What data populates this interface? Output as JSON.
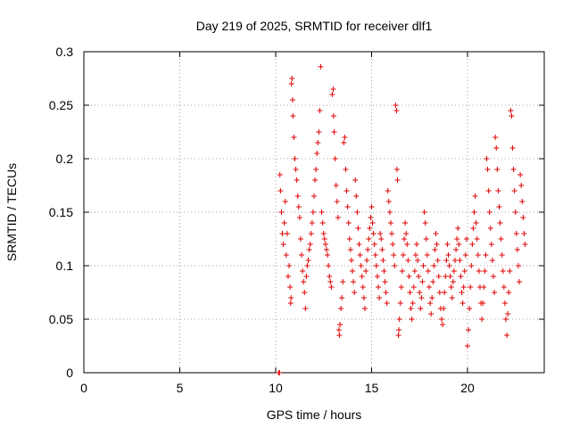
{
  "chart_data": {
    "type": "scatter",
    "title": "Day 219 of 2025, SRMTID for receiver dlf1",
    "xlabel": "GPS time / hours",
    "ylabel": "SRMTID / TECUs",
    "xlim": [
      0,
      24
    ],
    "ylim": [
      0,
      0.3
    ],
    "x_ticks": [
      0,
      5,
      10,
      15,
      20
    ],
    "y_ticks": [
      0,
      0.05,
      0.1,
      0.15,
      0.2,
      0.25,
      0.3
    ],
    "x_tick_labels": [
      "0",
      "5",
      "10",
      "15",
      "20"
    ],
    "y_tick_labels": [
      "0",
      "0.05",
      "0.1",
      "0.15",
      "0.2",
      "0.25",
      "0.3"
    ],
    "grid": true,
    "grid_style": "dotted",
    "marker": "+",
    "series": [
      {
        "color": "#e00000",
        "points": [
          [
            10.15,
            0.0
          ],
          [
            10.2,
            0.0
          ],
          [
            10.22,
            0.185
          ],
          [
            10.25,
            0.17
          ],
          [
            10.3,
            0.15
          ],
          [
            10.35,
            0.13
          ],
          [
            10.4,
            0.12
          ],
          [
            10.45,
            0.14
          ],
          [
            10.5,
            0.16
          ],
          [
            10.55,
            0.11
          ],
          [
            10.6,
            0.13
          ],
          [
            10.65,
            0.09
          ],
          [
            10.7,
            0.1
          ],
          [
            10.75,
            0.08
          ],
          [
            10.78,
            0.065
          ],
          [
            10.8,
            0.07
          ],
          [
            10.82,
            0.27
          ],
          [
            10.85,
            0.275
          ],
          [
            10.88,
            0.255
          ],
          [
            10.9,
            0.24
          ],
          [
            10.95,
            0.22
          ],
          [
            11.0,
            0.2
          ],
          [
            11.05,
            0.19
          ],
          [
            11.1,
            0.18
          ],
          [
            11.15,
            0.165
          ],
          [
            11.2,
            0.155
          ],
          [
            11.25,
            0.145
          ],
          [
            11.3,
            0.125
          ],
          [
            11.35,
            0.11
          ],
          [
            11.4,
            0.095
          ],
          [
            11.45,
            0.085
          ],
          [
            11.5,
            0.075
          ],
          [
            11.55,
            0.06
          ],
          [
            11.6,
            0.09
          ],
          [
            11.65,
            0.1
          ],
          [
            11.7,
            0.105
          ],
          [
            11.75,
            0.115
          ],
          [
            11.8,
            0.12
          ],
          [
            11.85,
            0.13
          ],
          [
            11.9,
            0.14
          ],
          [
            11.95,
            0.15
          ],
          [
            12.0,
            0.165
          ],
          [
            12.05,
            0.18
          ],
          [
            12.1,
            0.19
          ],
          [
            12.15,
            0.205
          ],
          [
            12.2,
            0.215
          ],
          [
            12.25,
            0.225
          ],
          [
            12.3,
            0.245
          ],
          [
            12.35,
            0.286
          ],
          [
            12.4,
            0.15
          ],
          [
            12.45,
            0.14
          ],
          [
            12.5,
            0.13
          ],
          [
            12.55,
            0.125
          ],
          [
            12.6,
            0.12
          ],
          [
            12.65,
            0.115
          ],
          [
            12.7,
            0.11
          ],
          [
            12.75,
            0.1
          ],
          [
            12.8,
            0.09
          ],
          [
            12.85,
            0.085
          ],
          [
            12.9,
            0.08
          ],
          [
            12.95,
            0.26
          ],
          [
            13.0,
            0.265
          ],
          [
            13.02,
            0.24
          ],
          [
            13.05,
            0.225
          ],
          [
            13.1,
            0.2
          ],
          [
            13.15,
            0.175
          ],
          [
            13.2,
            0.16
          ],
          [
            13.25,
            0.145
          ],
          [
            13.3,
            0.04
          ],
          [
            13.32,
            0.035
          ],
          [
            13.35,
            0.045
          ],
          [
            13.4,
            0.06
          ],
          [
            13.45,
            0.07
          ],
          [
            13.5,
            0.085
          ],
          [
            13.55,
            0.215
          ],
          [
            13.6,
            0.22
          ],
          [
            13.65,
            0.19
          ],
          [
            13.7,
            0.17
          ],
          [
            13.75,
            0.155
          ],
          [
            13.8,
            0.14
          ],
          [
            13.85,
            0.125
          ],
          [
            13.9,
            0.115
          ],
          [
            13.95,
            0.105
          ],
          [
            14.0,
            0.095
          ],
          [
            14.05,
            0.085
          ],
          [
            14.1,
            0.075
          ],
          [
            14.15,
            0.18
          ],
          [
            14.2,
            0.165
          ],
          [
            14.25,
            0.15
          ],
          [
            14.3,
            0.135
          ],
          [
            14.35,
            0.12
          ],
          [
            14.4,
            0.11
          ],
          [
            14.45,
            0.1
          ],
          [
            14.5,
            0.09
          ],
          [
            14.55,
            0.08
          ],
          [
            14.6,
            0.07
          ],
          [
            14.65,
            0.06
          ],
          [
            14.7,
            0.095
          ],
          [
            14.75,
            0.105
          ],
          [
            14.8,
            0.115
          ],
          [
            14.85,
            0.125
          ],
          [
            14.9,
            0.135
          ],
          [
            14.95,
            0.145
          ],
          [
            15.0,
            0.155
          ],
          [
            15.05,
            0.14
          ],
          [
            15.1,
            0.13
          ],
          [
            15.15,
            0.12
          ],
          [
            15.2,
            0.11
          ],
          [
            15.25,
            0.1
          ],
          [
            15.3,
            0.09
          ],
          [
            15.35,
            0.08
          ],
          [
            15.4,
            0.07
          ],
          [
            15.45,
            0.13
          ],
          [
            15.5,
            0.125
          ],
          [
            15.55,
            0.115
          ],
          [
            15.6,
            0.105
          ],
          [
            15.65,
            0.095
          ],
          [
            15.7,
            0.085
          ],
          [
            15.75,
            0.075
          ],
          [
            15.8,
            0.065
          ],
          [
            15.85,
            0.17
          ],
          [
            15.9,
            0.16
          ],
          [
            15.95,
            0.15
          ],
          [
            16.0,
            0.14
          ],
          [
            16.05,
            0.13
          ],
          [
            16.1,
            0.12
          ],
          [
            16.15,
            0.11
          ],
          [
            16.2,
            0.1
          ],
          [
            16.25,
            0.25
          ],
          [
            16.3,
            0.245
          ],
          [
            16.32,
            0.19
          ],
          [
            16.35,
            0.18
          ],
          [
            16.4,
            0.035
          ],
          [
            16.42,
            0.04
          ],
          [
            16.45,
            0.05
          ],
          [
            16.5,
            0.065
          ],
          [
            16.55,
            0.08
          ],
          [
            16.6,
            0.095
          ],
          [
            16.65,
            0.11
          ],
          [
            16.7,
            0.125
          ],
          [
            16.75,
            0.14
          ],
          [
            16.8,
            0.13
          ],
          [
            16.85,
            0.12
          ],
          [
            16.9,
            0.105
          ],
          [
            16.95,
            0.09
          ],
          [
            17.0,
            0.075
          ],
          [
            17.05,
            0.06
          ],
          [
            17.1,
            0.05
          ],
          [
            17.15,
            0.065
          ],
          [
            17.2,
            0.08
          ],
          [
            17.25,
            0.095
          ],
          [
            17.3,
            0.11
          ],
          [
            17.35,
            0.12
          ],
          [
            17.4,
            0.105
          ],
          [
            17.45,
            0.09
          ],
          [
            17.5,
            0.075
          ],
          [
            17.55,
            0.06
          ],
          [
            17.6,
            0.07
          ],
          [
            17.65,
            0.085
          ],
          [
            17.7,
            0.1
          ],
          [
            17.75,
            0.15
          ],
          [
            17.8,
            0.14
          ],
          [
            17.85,
            0.125
          ],
          [
            17.9,
            0.11
          ],
          [
            17.95,
            0.095
          ],
          [
            18.0,
            0.08
          ],
          [
            18.05,
            0.065
          ],
          [
            18.1,
            0.055
          ],
          [
            18.15,
            0.07
          ],
          [
            18.2,
            0.085
          ],
          [
            18.25,
            0.1
          ],
          [
            18.3,
            0.115
          ],
          [
            18.35,
            0.13
          ],
          [
            18.4,
            0.12
          ],
          [
            18.45,
            0.105
          ],
          [
            18.5,
            0.09
          ],
          [
            18.55,
            0.075
          ],
          [
            18.6,
            0.06
          ],
          [
            18.65,
            0.05
          ],
          [
            18.7,
            0.045
          ],
          [
            18.75,
            0.06
          ],
          [
            18.8,
            0.075
          ],
          [
            18.85,
            0.09
          ],
          [
            18.9,
            0.105
          ],
          [
            18.95,
            0.12
          ],
          [
            19.0,
            0.11
          ],
          [
            19.05,
            0.1
          ],
          [
            19.1,
            0.09
          ],
          [
            19.15,
            0.08
          ],
          [
            19.2,
            0.07
          ],
          [
            19.25,
            0.085
          ],
          [
            19.3,
            0.095
          ],
          [
            19.35,
            0.105
          ],
          [
            19.4,
            0.115
          ],
          [
            19.45,
            0.125
          ],
          [
            19.5,
            0.135
          ],
          [
            19.55,
            0.12
          ],
          [
            19.6,
            0.105
          ],
          [
            19.65,
            0.09
          ],
          [
            19.7,
            0.075
          ],
          [
            19.75,
            0.065
          ],
          [
            19.8,
            0.08
          ],
          [
            19.85,
            0.095
          ],
          [
            19.9,
            0.11
          ],
          [
            19.95,
            0.125
          ],
          [
            20.0,
            0.025
          ],
          [
            20.05,
            0.04
          ],
          [
            20.1,
            0.06
          ],
          [
            20.15,
            0.08
          ],
          [
            20.2,
            0.1
          ],
          [
            20.25,
            0.12
          ],
          [
            20.3,
            0.135
          ],
          [
            20.35,
            0.15
          ],
          [
            20.4,
            0.165
          ],
          [
            20.45,
            0.14
          ],
          [
            20.5,
            0.125
          ],
          [
            20.55,
            0.11
          ],
          [
            20.6,
            0.095
          ],
          [
            20.65,
            0.08
          ],
          [
            20.7,
            0.065
          ],
          [
            20.75,
            0.05
          ],
          [
            20.8,
            0.065
          ],
          [
            20.85,
            0.08
          ],
          [
            20.9,
            0.095
          ],
          [
            20.95,
            0.11
          ],
          [
            21.0,
            0.2
          ],
          [
            21.05,
            0.19
          ],
          [
            21.1,
            0.17
          ],
          [
            21.15,
            0.15
          ],
          [
            21.2,
            0.135
          ],
          [
            21.25,
            0.12
          ],
          [
            21.3,
            0.105
          ],
          [
            21.35,
            0.09
          ],
          [
            21.4,
            0.075
          ],
          [
            21.45,
            0.22
          ],
          [
            21.5,
            0.21
          ],
          [
            21.55,
            0.19
          ],
          [
            21.6,
            0.17
          ],
          [
            21.65,
            0.155
          ],
          [
            21.7,
            0.14
          ],
          [
            21.75,
            0.125
          ],
          [
            21.8,
            0.11
          ],
          [
            21.85,
            0.095
          ],
          [
            21.9,
            0.08
          ],
          [
            21.95,
            0.065
          ],
          [
            22.0,
            0.05
          ],
          [
            22.05,
            0.035
          ],
          [
            22.1,
            0.055
          ],
          [
            22.15,
            0.075
          ],
          [
            22.2,
            0.095
          ],
          [
            22.25,
            0.245
          ],
          [
            22.3,
            0.24
          ],
          [
            22.35,
            0.21
          ],
          [
            22.4,
            0.19
          ],
          [
            22.45,
            0.17
          ],
          [
            22.5,
            0.15
          ],
          [
            22.55,
            0.13
          ],
          [
            22.6,
            0.115
          ],
          [
            22.65,
            0.1
          ],
          [
            22.7,
            0.085
          ],
          [
            22.75,
            0.185
          ],
          [
            22.8,
            0.175
          ],
          [
            22.85,
            0.16
          ],
          [
            22.9,
            0.145
          ],
          [
            22.95,
            0.13
          ],
          [
            23.0,
            0.12
          ]
        ]
      }
    ]
  }
}
